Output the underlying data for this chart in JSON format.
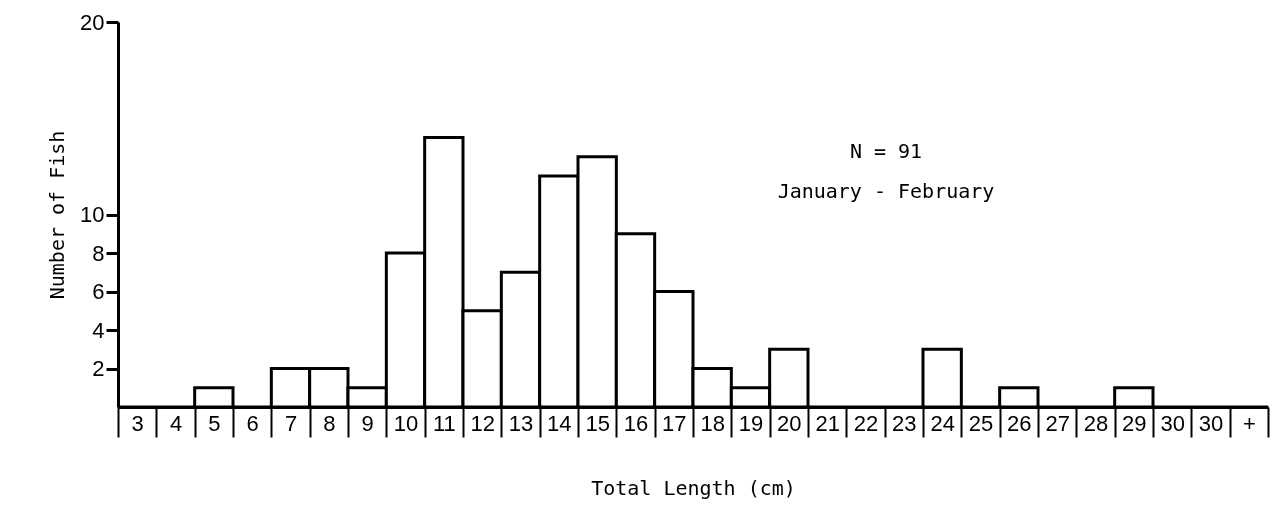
{
  "chart_data": {
    "type": "bar",
    "xlabel": "Total Length (cm)",
    "ylabel": "Number of Fish",
    "categories": [
      "3",
      "4",
      "5",
      "6",
      "7",
      "8",
      "9",
      "10",
      "11",
      "12",
      "13",
      "14",
      "15",
      "16",
      "17",
      "18",
      "19",
      "20",
      "21",
      "22",
      "23",
      "24",
      "25",
      "26",
      "27",
      "28",
      "29",
      "30",
      "30",
      "+"
    ],
    "values": [
      0,
      0,
      1,
      0,
      2,
      2,
      1,
      8,
      14,
      5,
      7,
      12,
      13,
      9,
      6,
      2,
      1,
      3,
      0,
      0,
      0,
      3,
      0,
      1,
      0,
      0,
      1,
      0,
      0,
      0
    ],
    "color": "#000000",
    "ylim": [
      0,
      20
    ],
    "yticks": [
      2,
      4,
      6,
      8,
      10,
      20
    ],
    "grid": false,
    "annotations": [
      "N = 91",
      "January - February"
    ]
  }
}
